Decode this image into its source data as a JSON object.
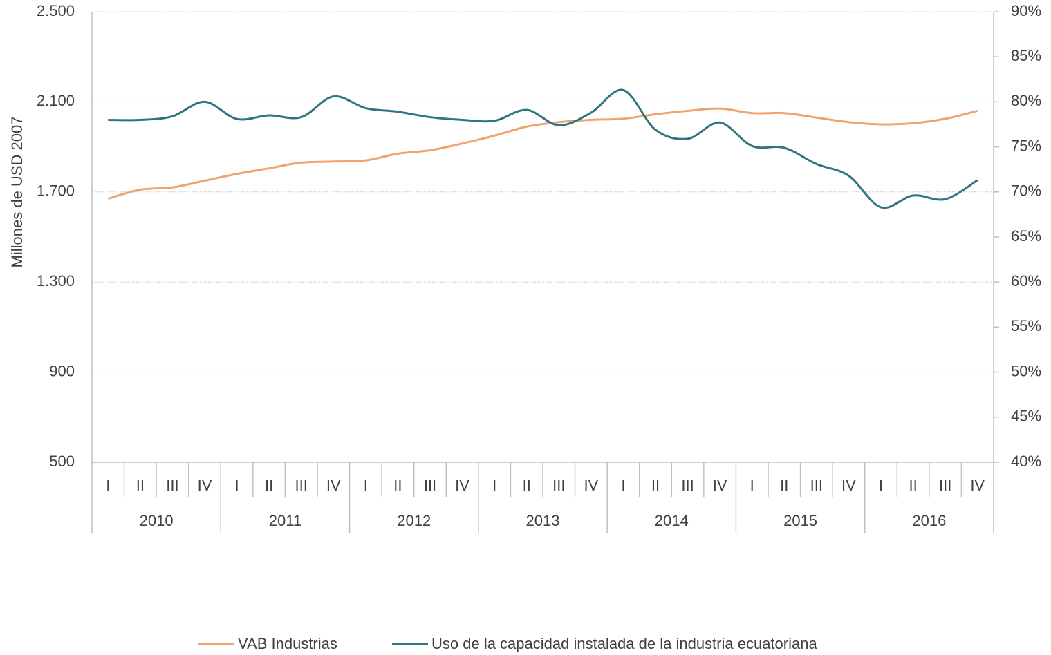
{
  "chart_data": {
    "type": "line",
    "y_label": "Millones de USD 2007",
    "categories": [
      "I",
      "II",
      "III",
      "IV",
      "I",
      "II",
      "III",
      "IV",
      "I",
      "II",
      "III",
      "IV",
      "I",
      "II",
      "III",
      "IV",
      "I",
      "II",
      "III",
      "IV",
      "I",
      "II",
      "III",
      "IV",
      "I",
      "II",
      "III",
      "IV"
    ],
    "years": [
      "2010",
      "2011",
      "2012",
      "2013",
      "2014",
      "2015",
      "2016"
    ],
    "series": [
      {
        "name": "VAB Industrias",
        "color": "#f0a36e",
        "values": [
          1670,
          1710,
          1720,
          1750,
          1780,
          1805,
          1830,
          1835,
          1840,
          1870,
          1885,
          1915,
          1950,
          1990,
          2010,
          2020,
          2025,
          2045,
          2060,
          2070,
          2050,
          2050,
          2030,
          2010,
          2000,
          2005,
          2025,
          2060
        ]
      },
      {
        "name": "Uso de la capacidad instalada de la industria ecuatoriana",
        "color": "#2e7580",
        "axis": "y2",
        "values": [
          78,
          78,
          78.4,
          80,
          78.1,
          78.5,
          78.3,
          80.6,
          79.3,
          78.9,
          78.3,
          78,
          77.9,
          79.1,
          77.4,
          78.8,
          81.3,
          76.9,
          75.9,
          77.7,
          75.1,
          74.9,
          73.1,
          71.8,
          68.3,
          69.6,
          69.2,
          71.3
        ]
      }
    ],
    "ylim": [
      500,
      2500
    ],
    "yticks": [
      500,
      900,
      {
        "value": 1300,
        "label": "1.300"
      },
      {
        "value": 1700,
        "label": "1.700"
      },
      {
        "value": 2100,
        "label": "2.100"
      },
      {
        "value": 2500,
        "label": "2.500"
      }
    ],
    "y2lim": [
      40,
      90
    ],
    "y2ticks": [
      {
        "value": 40,
        "label": "40%"
      },
      {
        "value": 45,
        "label": "45%"
      },
      {
        "value": 50,
        "label": "50%"
      },
      {
        "value": 55,
        "label": "55%"
      },
      {
        "value": 60,
        "label": "60%"
      },
      {
        "value": 65,
        "label": "65%"
      },
      {
        "value": 70,
        "label": "70%"
      },
      {
        "value": 75,
        "label": "75%"
      },
      {
        "value": 80,
        "label": "80%"
      },
      {
        "value": 85,
        "label": "85%"
      },
      {
        "value": 90,
        "label": "90%"
      }
    ],
    "grid": true
  }
}
